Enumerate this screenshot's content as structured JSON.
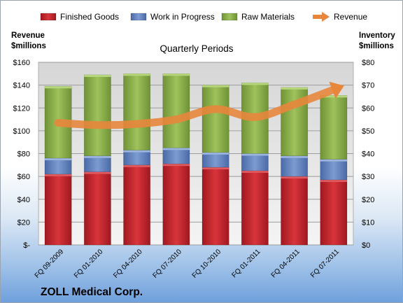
{
  "chart_data": {
    "type": "bar",
    "title": "Quarterly Periods",
    "company": "ZOLL Medical Corp.",
    "left_axis_label": [
      "Revenue",
      "$millions"
    ],
    "right_axis_label": [
      "Inventory",
      "$millions"
    ],
    "left_ylim": [
      0,
      160
    ],
    "right_ylim": [
      0,
      80
    ],
    "left_ticks": [
      "$-",
      "$20",
      "$40",
      "$60",
      "$80",
      "$100",
      "$120",
      "$140",
      "$160"
    ],
    "right_ticks": [
      "$0",
      "$10",
      "$20",
      "$30",
      "$40",
      "$50",
      "$60",
      "$70",
      "$80"
    ],
    "grid": true,
    "legend_position": "top",
    "categories": [
      "FQ 09-2009",
      "FQ 01-2010",
      "FQ 04-2010",
      "FQ 07-2010",
      "FQ 10-2010",
      "FQ 01-2011",
      "FQ 04-2011",
      "FQ 07-2011"
    ],
    "stacked_axis": "right",
    "series": [
      {
        "name": "Finished Goods",
        "color": "#c0272d",
        "values": [
          31,
          32,
          35,
          35.5,
          34,
          32.5,
          30,
          28.5
        ]
      },
      {
        "name": "Work in Progress",
        "color": "#5b7fc0",
        "values": [
          7,
          7,
          6.5,
          7,
          6.5,
          7.5,
          9,
          9
        ]
      },
      {
        "name": "Raw Materials",
        "color": "#8cb04a",
        "values": [
          31.5,
          35.5,
          33.5,
          32.5,
          29.5,
          31,
          30,
          28
        ]
      }
    ],
    "line_series": {
      "name": "Revenue",
      "color": "#e8863c",
      "axis": "left",
      "values": [
        107,
        105,
        106,
        110,
        119,
        112,
        123,
        136
      ]
    }
  }
}
